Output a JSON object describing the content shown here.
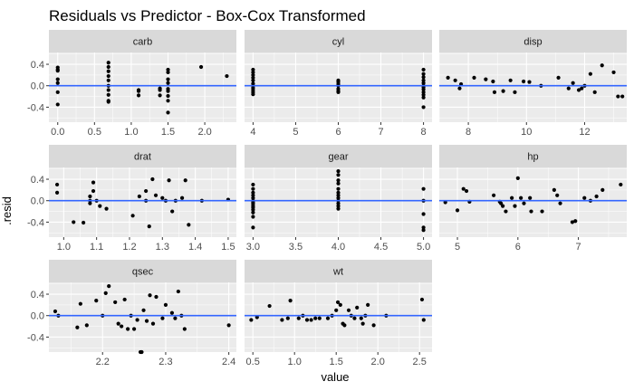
{
  "chart_data": {
    "type": "scatter",
    "title": "Residuals vs Predictor - Box-Cox Transformed",
    "xlabel": "value",
    "ylabel": ".resid",
    "ylim": [
      -0.68,
      0.62
    ],
    "y_ticks": [
      -0.4,
      0.0,
      0.4
    ],
    "y_tick_labels": [
      "-0.4",
      "0.0",
      "0.4"
    ],
    "grid": true,
    "legend": "none",
    "colors": {
      "panel_bg": "#ebebeb",
      "strip_bg": "#d9d9d9",
      "grid_major": "#ffffff",
      "points": "#000000",
      "fit_line": "#3366ff",
      "tick_mark": "#333333"
    },
    "facets": [
      {
        "name": "carb",
        "xlim": [
          -0.12,
          2.43
        ],
        "x_ticks": [
          0,
          0.5,
          1,
          1.5,
          2
        ],
        "x_tick_labels": [
          "0.0",
          "0.5",
          "1.0",
          "1.5",
          "2.0"
        ],
        "points": [
          [
            0.0,
            0.34
          ],
          [
            0.0,
            0.3
          ],
          [
            0.0,
            0.12
          ],
          [
            0.0,
            0.05
          ],
          [
            0.0,
            -0.12
          ],
          [
            0.0,
            -0.35
          ],
          [
            0.0,
            0.28
          ],
          [
            0.69,
            0.43
          ],
          [
            0.69,
            0.35
          ],
          [
            0.69,
            0.27
          ],
          [
            0.69,
            0.18
          ],
          [
            0.69,
            0.1
          ],
          [
            0.69,
            0.0
          ],
          [
            0.69,
            -0.08
          ],
          [
            0.69,
            -0.17
          ],
          [
            0.69,
            -0.28
          ],
          [
            0.69,
            -0.3
          ],
          [
            1.1,
            -0.08
          ],
          [
            1.1,
            -0.1
          ],
          [
            1.1,
            -0.18
          ],
          [
            1.39,
            -0.08
          ],
          [
            1.39,
            -0.05
          ],
          [
            1.39,
            -0.18
          ],
          [
            1.5,
            0.3
          ],
          [
            1.5,
            0.25
          ],
          [
            1.5,
            0.12
          ],
          [
            1.5,
            0.05
          ],
          [
            1.5,
            -0.06
          ],
          [
            1.5,
            -0.1
          ],
          [
            1.5,
            -0.19
          ],
          [
            1.5,
            -0.28
          ],
          [
            1.5,
            -0.5
          ],
          [
            1.95,
            0.35
          ],
          [
            2.3,
            0.18
          ]
        ]
      },
      {
        "name": "cyl",
        "xlim": [
          3.8,
          8.2
        ],
        "x_ticks": [
          4,
          5,
          6,
          7,
          8
        ],
        "x_tick_labels": [
          "4",
          "5",
          "6",
          "7",
          "8"
        ],
        "points": [
          [
            4,
            0.3
          ],
          [
            4,
            0.25
          ],
          [
            4,
            0.2
          ],
          [
            4,
            0.15
          ],
          [
            4,
            0.1
          ],
          [
            4,
            0.04
          ],
          [
            4,
            0.0
          ],
          [
            4,
            -0.04
          ],
          [
            4,
            -0.08
          ],
          [
            4,
            -0.12
          ],
          [
            4,
            -0.16
          ],
          [
            6,
            0.1
          ],
          [
            6,
            0.07
          ],
          [
            6,
            0.03
          ],
          [
            6,
            0.0
          ],
          [
            6,
            -0.06
          ],
          [
            6,
            -0.1
          ],
          [
            6,
            -0.12
          ],
          [
            8,
            0.3
          ],
          [
            8,
            0.22
          ],
          [
            8,
            0.16
          ],
          [
            8,
            0.1
          ],
          [
            8,
            0.05
          ],
          [
            8,
            0.0
          ],
          [
            8,
            -0.03
          ],
          [
            8,
            -0.07
          ],
          [
            8,
            -0.12
          ],
          [
            8,
            -0.17
          ],
          [
            8,
            -0.22
          ],
          [
            8,
            -0.4
          ]
        ]
      },
      {
        "name": "disp",
        "xlim": [
          7.0,
          13.45
        ],
        "x_ticks": [
          8,
          10,
          12
        ],
        "x_tick_labels": [
          "8",
          "10",
          "12"
        ],
        "points": [
          [
            7.3,
            0.15
          ],
          [
            7.55,
            0.1
          ],
          [
            7.7,
            -0.05
          ],
          [
            7.75,
            0.03
          ],
          [
            8.2,
            0.15
          ],
          [
            8.6,
            0.12
          ],
          [
            8.85,
            0.08
          ],
          [
            8.9,
            -0.12
          ],
          [
            9.2,
            -0.1
          ],
          [
            9.45,
            0.1
          ],
          [
            9.6,
            -0.12
          ],
          [
            9.9,
            0.08
          ],
          [
            10.1,
            0.07
          ],
          [
            10.5,
            0.0
          ],
          [
            11.1,
            0.15
          ],
          [
            11.45,
            -0.05
          ],
          [
            11.6,
            0.05
          ],
          [
            11.8,
            -0.08
          ],
          [
            11.9,
            -0.05
          ],
          [
            12.0,
            0.0
          ],
          [
            12.2,
            0.22
          ],
          [
            12.35,
            -0.12
          ],
          [
            12.6,
            0.38
          ],
          [
            13.0,
            0.25
          ],
          [
            13.15,
            -0.2
          ],
          [
            13.3,
            -0.2
          ]
        ]
      },
      {
        "name": "drat",
        "xlim": [
          0.955,
          1.525
        ],
        "x_ticks": [
          1.0,
          1.1,
          1.2,
          1.3,
          1.4,
          1.5
        ],
        "x_tick_labels": [
          "1.0",
          "1.1",
          "1.2",
          "1.3",
          "1.4",
          "1.5"
        ],
        "points": [
          [
            0.98,
            0.3
          ],
          [
            0.98,
            0.15
          ],
          [
            1.03,
            -0.4
          ],
          [
            1.06,
            -0.41
          ],
          [
            1.08,
            0.08
          ],
          [
            1.08,
            0.0
          ],
          [
            1.08,
            -0.05
          ],
          [
            1.09,
            0.34
          ],
          [
            1.09,
            0.18
          ],
          [
            1.1,
            0.0
          ],
          [
            1.11,
            -0.1
          ],
          [
            1.13,
            -0.15
          ],
          [
            1.21,
            -0.28
          ],
          [
            1.23,
            0.08
          ],
          [
            1.25,
            0.18
          ],
          [
            1.25,
            0.0
          ],
          [
            1.26,
            -0.48
          ],
          [
            1.27,
            0.4
          ],
          [
            1.28,
            0.1
          ],
          [
            1.3,
            0.05
          ],
          [
            1.31,
            0.0
          ],
          [
            1.32,
            0.38
          ],
          [
            1.33,
            -0.2
          ],
          [
            1.34,
            0.0
          ],
          [
            1.36,
            0.05
          ],
          [
            1.37,
            0.38
          ],
          [
            1.38,
            -0.45
          ],
          [
            1.42,
            0.0
          ],
          [
            1.5,
            0.02
          ]
        ]
      },
      {
        "name": "gear",
        "xlim": [
          2.9,
          5.1
        ],
        "x_ticks": [
          3.0,
          3.5,
          4.0,
          4.5,
          5.0
        ],
        "x_tick_labels": [
          "3.0",
          "3.5",
          "4.0",
          "4.5",
          "5.0"
        ],
        "points": [
          [
            3,
            0.3
          ],
          [
            3,
            0.22
          ],
          [
            3,
            0.15
          ],
          [
            3,
            0.1
          ],
          [
            3,
            0.05
          ],
          [
            3,
            0.0
          ],
          [
            3,
            -0.03
          ],
          [
            3,
            -0.06
          ],
          [
            3,
            -0.1
          ],
          [
            3,
            -0.13
          ],
          [
            3,
            -0.17
          ],
          [
            3,
            -0.22
          ],
          [
            3,
            -0.3
          ],
          [
            3,
            -0.5
          ],
          [
            4,
            0.55
          ],
          [
            4,
            0.48
          ],
          [
            4,
            0.38
          ],
          [
            4,
            0.32
          ],
          [
            4,
            0.22
          ],
          [
            4,
            0.15
          ],
          [
            4,
            0.1
          ],
          [
            4,
            0.05
          ],
          [
            4,
            0.0
          ],
          [
            4,
            -0.05
          ],
          [
            4,
            -0.1
          ],
          [
            4,
            -0.15
          ],
          [
            5,
            0.22
          ],
          [
            5,
            0.0
          ],
          [
            5,
            -0.25
          ],
          [
            5,
            -0.5
          ],
          [
            5,
            -0.55
          ]
        ]
      },
      {
        "name": "hp",
        "xlim": [
          4.7,
          7.8
        ],
        "x_ticks": [
          5,
          6,
          7
        ],
        "x_tick_labels": [
          "5",
          "6",
          "7"
        ],
        "points": [
          [
            4.8,
            -0.03
          ],
          [
            5.0,
            -0.18
          ],
          [
            5.1,
            0.22
          ],
          [
            5.15,
            0.18
          ],
          [
            5.2,
            -0.02
          ],
          [
            5.6,
            0.1
          ],
          [
            5.7,
            -0.02
          ],
          [
            5.72,
            -0.05
          ],
          [
            5.75,
            -0.1
          ],
          [
            5.8,
            -0.2
          ],
          [
            5.9,
            0.05
          ],
          [
            5.95,
            -0.1
          ],
          [
            6.0,
            0.42
          ],
          [
            6.05,
            0.05
          ],
          [
            6.1,
            -0.05
          ],
          [
            6.2,
            0.05
          ],
          [
            6.22,
            -0.2
          ],
          [
            6.4,
            -0.2
          ],
          [
            6.6,
            0.2
          ],
          [
            6.65,
            0.1
          ],
          [
            6.7,
            -0.05
          ],
          [
            6.9,
            -0.4
          ],
          [
            6.95,
            -0.38
          ],
          [
            7.1,
            0.05
          ],
          [
            7.2,
            0.0
          ],
          [
            7.3,
            0.08
          ],
          [
            7.4,
            0.2
          ],
          [
            7.7,
            0.3
          ]
        ]
      },
      {
        "name": "qsec",
        "xlim": [
          2.115,
          2.412
        ],
        "x_ticks": [
          2.2,
          2.3,
          2.4
        ],
        "x_tick_labels": [
          "2.2",
          "2.3",
          "2.4"
        ],
        "points": [
          [
            2.125,
            0.08
          ],
          [
            2.13,
            0.0
          ],
          [
            2.16,
            -0.22
          ],
          [
            2.165,
            0.22
          ],
          [
            2.175,
            -0.18
          ],
          [
            2.19,
            0.28
          ],
          [
            2.2,
            0.0
          ],
          [
            2.205,
            0.42
          ],
          [
            2.21,
            0.55
          ],
          [
            2.22,
            0.25
          ],
          [
            2.225,
            -0.15
          ],
          [
            2.23,
            -0.2
          ],
          [
            2.235,
            0.3
          ],
          [
            2.24,
            -0.25
          ],
          [
            2.245,
            0.0
          ],
          [
            2.25,
            -0.25
          ],
          [
            2.255,
            -0.08
          ],
          [
            2.26,
            -0.68
          ],
          [
            2.262,
            -0.68
          ],
          [
            2.265,
            0.1
          ],
          [
            2.27,
            -0.1
          ],
          [
            2.275,
            0.38
          ],
          [
            2.28,
            -0.15
          ],
          [
            2.285,
            0.35
          ],
          [
            2.295,
            -0.05
          ],
          [
            2.3,
            0.2
          ],
          [
            2.31,
            0.05
          ],
          [
            2.315,
            -0.05
          ],
          [
            2.32,
            0.45
          ],
          [
            2.325,
            0.0
          ],
          [
            2.33,
            -0.25
          ],
          [
            2.4,
            -0.18
          ]
        ]
      },
      {
        "name": "wt",
        "xlim": [
          0.4,
          2.65
        ],
        "x_ticks": [
          0.5,
          1.0,
          1.5,
          2.0,
          2.5
        ],
        "x_tick_labels": [
          "0.5",
          "1.0",
          "1.5",
          "2.0",
          "2.5"
        ],
        "points": [
          [
            0.48,
            -0.08
          ],
          [
            0.55,
            -0.03
          ],
          [
            0.7,
            0.18
          ],
          [
            0.85,
            -0.08
          ],
          [
            0.92,
            -0.05
          ],
          [
            0.95,
            0.28
          ],
          [
            1.05,
            -0.05
          ],
          [
            1.1,
            0.0
          ],
          [
            1.15,
            -0.08
          ],
          [
            1.2,
            -0.08
          ],
          [
            1.25,
            -0.05
          ],
          [
            1.3,
            -0.05
          ],
          [
            1.4,
            -0.05
          ],
          [
            1.45,
            0.0
          ],
          [
            1.5,
            0.1
          ],
          [
            1.52,
            0.25
          ],
          [
            1.55,
            0.2
          ],
          [
            1.58,
            -0.15
          ],
          [
            1.6,
            -0.18
          ],
          [
            1.65,
            0.1
          ],
          [
            1.68,
            0.0
          ],
          [
            1.72,
            -0.05
          ],
          [
            1.75,
            0.15
          ],
          [
            1.8,
            -0.05
          ],
          [
            1.82,
            -0.15
          ],
          [
            1.85,
            0.0
          ],
          [
            1.88,
            0.2
          ],
          [
            1.95,
            -0.18
          ],
          [
            2.1,
            0.0
          ],
          [
            2.53,
            0.3
          ],
          [
            2.55,
            -0.08
          ]
        ]
      }
    ]
  }
}
